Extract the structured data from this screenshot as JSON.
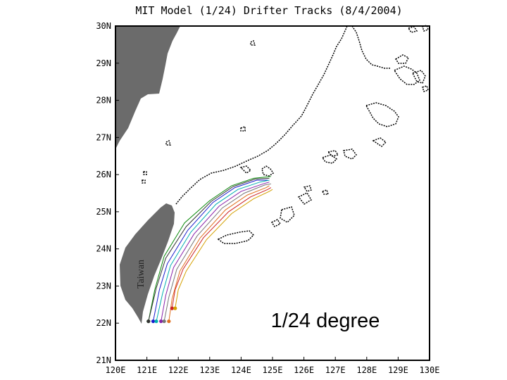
{
  "title": "MIT Model (1/24) Drifter Tracks (8/4/2004)",
  "island_label": "Taiwan",
  "resolution_label": "1/24 degree",
  "colors": {
    "land": "#6b6b6b",
    "coastline": "#000000",
    "frame": "#000000"
  },
  "map": {
    "lon_range": [
      120,
      130
    ],
    "lat_range": [
      21,
      30
    ],
    "lon_ticks": [
      "120E",
      "121E",
      "122E",
      "123E",
      "124E",
      "125E",
      "126E",
      "127E",
      "128E",
      "129E",
      "130E"
    ],
    "lat_ticks": [
      "21N",
      "22N",
      "23N",
      "24N",
      "25N",
      "26N",
      "27N",
      "28N",
      "29N",
      "30N"
    ]
  },
  "drifters": [
    {
      "color": "#0a8a0a",
      "track": [
        [
          121.05,
          22.05
        ],
        [
          121.25,
          22.9
        ],
        [
          121.55,
          23.8
        ],
        [
          122.2,
          24.7
        ],
        [
          123.0,
          25.3
        ],
        [
          123.7,
          25.7
        ],
        [
          124.4,
          25.9
        ],
        [
          124.95,
          25.95
        ]
      ]
    },
    {
      "color": "#1a1acc",
      "track": [
        [
          121.2,
          22.05
        ],
        [
          121.4,
          22.9
        ],
        [
          121.65,
          23.6
        ],
        [
          122.3,
          24.5
        ],
        [
          123.1,
          25.25
        ],
        [
          123.8,
          25.65
        ],
        [
          124.5,
          25.85
        ],
        [
          124.85,
          25.85
        ]
      ]
    },
    {
      "color": "#00b0b0",
      "track": [
        [
          121.3,
          22.05
        ],
        [
          121.5,
          22.8
        ],
        [
          121.75,
          23.55
        ],
        [
          122.4,
          24.45
        ],
        [
          123.2,
          25.2
        ],
        [
          123.9,
          25.6
        ],
        [
          124.6,
          25.8
        ],
        [
          124.9,
          25.85
        ]
      ]
    },
    {
      "color": "#8822aa",
      "track": [
        [
          121.45,
          22.05
        ],
        [
          121.6,
          22.75
        ],
        [
          121.85,
          23.5
        ],
        [
          122.5,
          24.4
        ],
        [
          123.3,
          25.15
        ],
        [
          124.0,
          25.55
        ],
        [
          124.7,
          25.75
        ],
        [
          124.9,
          25.8
        ]
      ]
    },
    {
      "color": "#777777",
      "track": [
        [
          121.55,
          22.05
        ],
        [
          121.7,
          22.7
        ],
        [
          121.95,
          23.45
        ],
        [
          122.6,
          24.35
        ],
        [
          123.4,
          25.1
        ],
        [
          124.1,
          25.5
        ],
        [
          124.75,
          25.72
        ],
        [
          124.95,
          25.75
        ]
      ]
    },
    {
      "color": "#e07020",
      "track": [
        [
          121.7,
          22.05
        ],
        [
          121.8,
          22.65
        ],
        [
          122.05,
          23.4
        ],
        [
          122.7,
          24.3
        ],
        [
          123.5,
          25.05
        ],
        [
          124.2,
          25.45
        ],
        [
          124.8,
          25.65
        ],
        [
          124.9,
          25.7
        ]
      ]
    },
    {
      "color": "#cc2222",
      "track": [
        [
          121.8,
          22.4
        ],
        [
          121.9,
          22.9
        ],
        [
          122.15,
          23.45
        ],
        [
          122.8,
          24.3
        ],
        [
          123.6,
          25.0
        ],
        [
          124.3,
          25.4
        ],
        [
          124.85,
          25.6
        ],
        [
          124.95,
          25.65
        ]
      ]
    },
    {
      "color": "#d4a000",
      "track": [
        [
          121.9,
          22.4
        ],
        [
          122.0,
          22.9
        ],
        [
          122.25,
          23.4
        ],
        [
          122.9,
          24.25
        ],
        [
          123.7,
          24.95
        ],
        [
          124.4,
          25.35
        ],
        [
          124.9,
          25.55
        ],
        [
          125.0,
          25.6
        ]
      ]
    },
    {
      "color": "#333333",
      "track": [
        [
          121.05,
          22.05
        ],
        [
          121.3,
          22.95
        ],
        [
          121.6,
          23.75
        ],
        [
          122.25,
          24.6
        ],
        [
          123.05,
          25.28
        ],
        [
          123.75,
          25.68
        ],
        [
          124.45,
          25.88
        ],
        [
          124.9,
          25.9
        ]
      ]
    }
  ]
}
